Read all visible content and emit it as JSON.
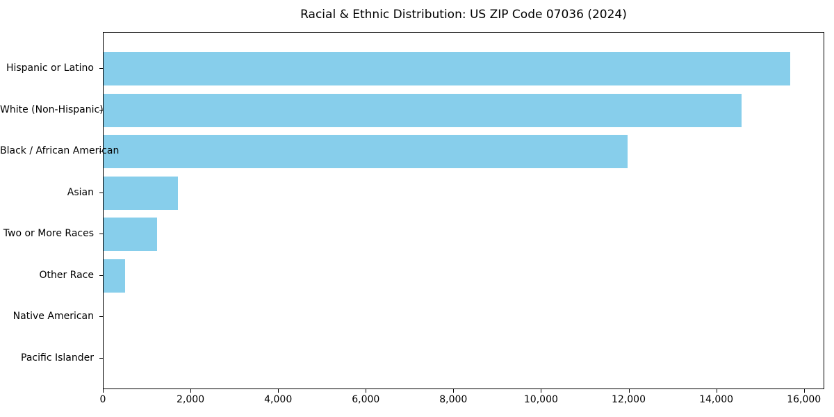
{
  "chart_data": {
    "type": "bar",
    "orientation": "horizontal",
    "title": "Racial & Ethnic Distribution: US ZIP Code 07036 (2024)",
    "categories": [
      "Hispanic or Latino",
      "White (Non-Hispanic)",
      "Black / African American",
      "Asian",
      "Two or More Races",
      "Other Race",
      "Native American",
      "Pacific Islander"
    ],
    "values": [
      15670,
      14560,
      11960,
      1700,
      1220,
      490,
      0,
      0
    ],
    "xlabel": "",
    "ylabel": "",
    "xlim": [
      0,
      16465
    ],
    "xticks": [
      0,
      2000,
      4000,
      6000,
      8000,
      10000,
      12000,
      14000,
      16000
    ],
    "xtick_labels": [
      "0",
      "2,000",
      "4,000",
      "6,000",
      "8,000",
      "10,000",
      "12,000",
      "14,000",
      "16,000"
    ],
    "grid": false,
    "legend": "none",
    "bar_color": "#87CEEB",
    "axis_color": "#000000",
    "background_color": "#FFFFFF"
  }
}
